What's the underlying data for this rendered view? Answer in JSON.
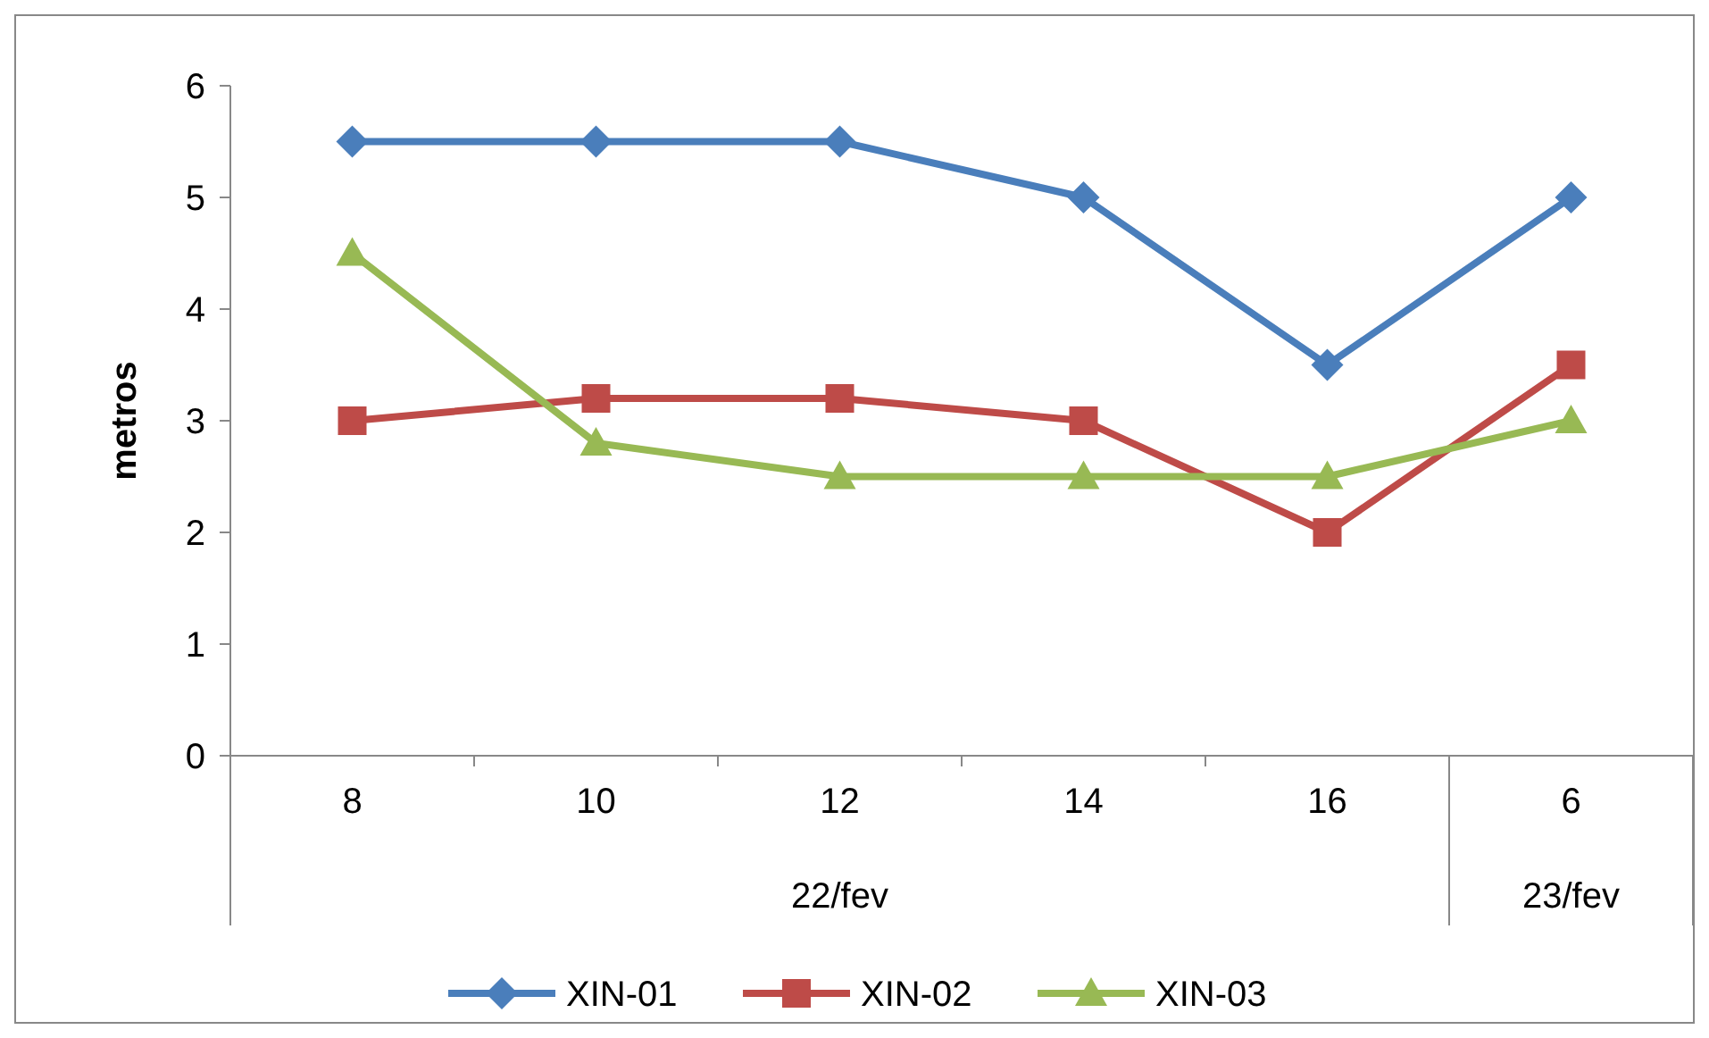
{
  "chart_data": {
    "type": "line",
    "ylabel": "metros",
    "categories": [
      "8",
      "10",
      "12",
      "14",
      "16",
      "6"
    ],
    "series": [
      {
        "name": "XIN-01",
        "color": "#4a7ebb",
        "marker": "diamond",
        "values": [
          5.5,
          5.5,
          5.5,
          5,
          3.5,
          5
        ]
      },
      {
        "name": "XIN-02",
        "color": "#be4b48",
        "marker": "square",
        "values": [
          3,
          3.2,
          3.2,
          3,
          2,
          3.5
        ]
      },
      {
        "name": "XIN-03",
        "color": "#98b954",
        "marker": "triangle",
        "values": [
          4.5,
          2.8,
          2.5,
          2.5,
          2.5,
          3
        ]
      }
    ],
    "ylim": [
      0,
      6
    ],
    "yticks": [
      0,
      1,
      2,
      3,
      4,
      5,
      6
    ],
    "grid": false,
    "legend": "bottom",
    "annotations": [
      "22/fev",
      "23/fev"
    ]
  }
}
